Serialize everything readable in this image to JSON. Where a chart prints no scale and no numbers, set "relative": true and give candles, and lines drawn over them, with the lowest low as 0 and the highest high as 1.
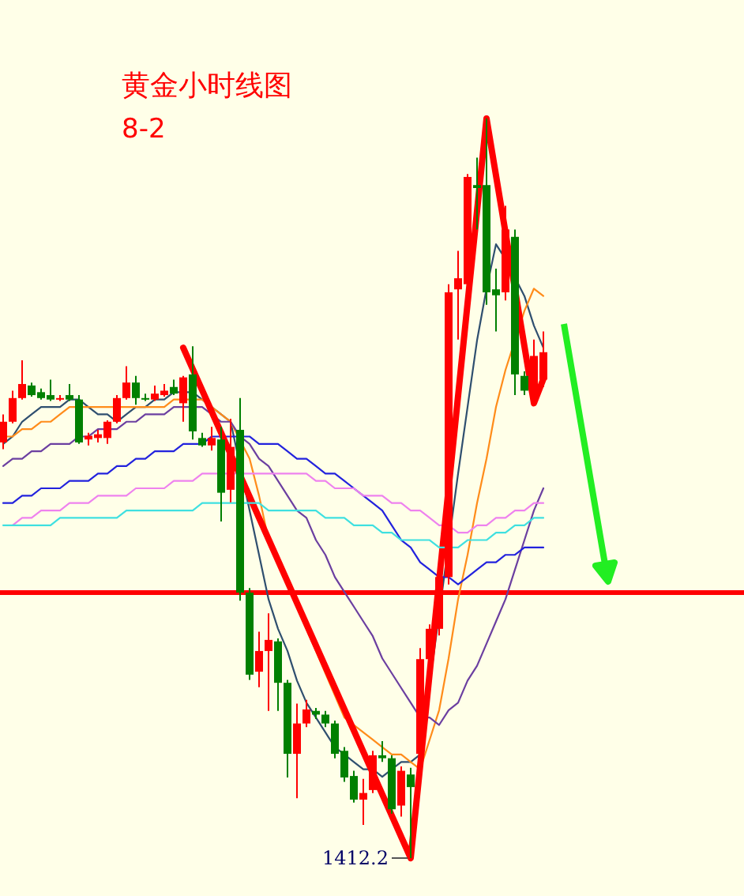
{
  "chart_data": {
    "type": "candlestick",
    "title": "黄金小时线图",
    "subtitle": "8-2",
    "relative": true,
    "tick_labels": false,
    "categories": [
      null,
      null,
      null,
      null,
      null,
      null,
      null,
      null,
      null,
      null,
      null,
      null,
      null,
      null,
      null,
      null,
      null,
      null,
      null,
      null,
      null,
      null,
      null,
      null,
      null,
      null,
      null,
      null,
      null,
      null,
      null,
      null,
      null,
      null,
      null,
      null,
      null,
      null,
      null,
      null,
      null,
      null,
      null,
      null,
      null,
      null,
      null,
      null,
      null,
      null,
      null,
      null,
      null,
      null,
      null,
      null,
      null,
      null
    ],
    "ohlc": [
      [
        0.562,
        0.6,
        0.553,
        0.59
      ],
      [
        0.59,
        0.632,
        0.588,
        0.622
      ],
      [
        0.622,
        0.673,
        0.62,
        0.641
      ],
      [
        0.639,
        0.643,
        0.624,
        0.626
      ],
      [
        0.63,
        0.635,
        0.62,
        0.622
      ],
      [
        0.626,
        0.647,
        0.618,
        0.62
      ],
      [
        0.62,
        0.626,
        0.618,
        0.622
      ],
      [
        0.626,
        0.641,
        0.618,
        0.62
      ],
      [
        0.62,
        0.626,
        0.56,
        0.562
      ],
      [
        0.566,
        0.575,
        0.558,
        0.571
      ],
      [
        0.568,
        0.579,
        0.562,
        0.573
      ],
      [
        0.568,
        0.592,
        0.56,
        0.59
      ],
      [
        0.59,
        0.626,
        0.588,
        0.622
      ],
      [
        0.622,
        0.665,
        0.62,
        0.643
      ],
      [
        0.643,
        0.652,
        0.613,
        0.622
      ],
      [
        0.622,
        0.628,
        0.618,
        0.62
      ],
      [
        0.62,
        0.639,
        0.618,
        0.628
      ],
      [
        0.626,
        0.641,
        0.624,
        0.632
      ],
      [
        0.637,
        0.647,
        0.626,
        0.628
      ],
      [
        0.615,
        0.652,
        0.59,
        0.65
      ],
      [
        0.654,
        0.692,
        0.566,
        0.577
      ],
      [
        0.568,
        0.575,
        0.556,
        0.558
      ],
      [
        0.558,
        0.583,
        0.551,
        0.568
      ],
      [
        0.566,
        0.583,
        0.455,
        0.494
      ],
      [
        0.498,
        0.594,
        0.481,
        0.556
      ],
      [
        0.579,
        0.622,
        0.348,
        0.359
      ],
      [
        0.359,
        0.365,
        0.241,
        0.248
      ],
      [
        0.252,
        0.306,
        0.231,
        0.28
      ],
      [
        0.28,
        0.331,
        0.199,
        0.295
      ],
      [
        0.293,
        0.297,
        0.199,
        0.237
      ],
      [
        0.237,
        0.241,
        0.109,
        0.141
      ],
      [
        0.141,
        0.209,
        0.081,
        0.182
      ],
      [
        0.182,
        0.214,
        0.177,
        0.201
      ],
      [
        0.199,
        0.203,
        0.188,
        0.194
      ],
      [
        0.194,
        0.199,
        0.177,
        0.182
      ],
      [
        0.182,
        0.186,
        0.135,
        0.141
      ],
      [
        0.145,
        0.15,
        0.103,
        0.109
      ],
      [
        0.111,
        0.118,
        0.075,
        0.079
      ],
      [
        0.079,
        0.107,
        0.045,
        0.088
      ],
      [
        0.092,
        0.145,
        0.088,
        0.139
      ],
      [
        0.139,
        0.158,
        0.13,
        0.135
      ],
      [
        0.135,
        0.139,
        0.06,
        0.066
      ],
      [
        0.071,
        0.124,
        0.056,
        0.118
      ],
      [
        0.113,
        0.122,
        0,
        0.096
      ],
      [
        0.141,
        0.284,
        0.135,
        0.269
      ],
      [
        0.269,
        0.316,
        0.263,
        0.31
      ],
      [
        0.31,
        0.391,
        0.301,
        0.38
      ],
      [
        0.38,
        0.776,
        0.37,
        0.765
      ],
      [
        0.769,
        0.821,
        0.701,
        0.784
      ],
      [
        0.776,
        0.925,
        0.765,
        0.921
      ],
      [
        0.91,
        0.947,
        0.85,
        0.906
      ],
      [
        0.91,
        1,
        0.748,
        0.765
      ],
      [
        0.769,
        0.797,
        0.712,
        0.761
      ],
      [
        0.765,
        0.882,
        0.754,
        0.85
      ],
      [
        0.84,
        0.85,
        0.626,
        0.654
      ],
      [
        0.652,
        0.658,
        0.626,
        0.632
      ],
      [
        0.622,
        0.701,
        0.62,
        0.679
      ],
      [
        0.647,
        0.712,
        0.637,
        0.684
      ]
    ],
    "series": [
      {
        "type": "line",
        "color": "#2f4f6f",
        "values": [
          0.56,
          0.57,
          0.59,
          0.6,
          0.61,
          0.61,
          0.61,
          0.62,
          0.62,
          0.61,
          0.6,
          0.6,
          0.59,
          0.6,
          0.61,
          0.61,
          0.62,
          0.62,
          0.63,
          0.63,
          0.63,
          0.62,
          0.61,
          0.6,
          0.59,
          null,
          0.47,
          0.41,
          0.35,
          0.31,
          0.28,
          0.24,
          0.21,
          0.19,
          0.17,
          0.15,
          0.14,
          0.13,
          0.12,
          0.12,
          0.11,
          0.12,
          0.13,
          0.13,
          0.14,
          null,
          null,
          null,
          0.52,
          0.61,
          0.7,
          0.77,
          0.83,
          0.81,
          null,
          0.76,
          0.72,
          0.69
        ]
      },
      {
        "type": "line",
        "color": "#ff8c1a",
        "values": [
          0.57,
          0.57,
          0.58,
          0.58,
          0.59,
          0.59,
          0.6,
          0.61,
          0.61,
          0.61,
          0.61,
          0.61,
          0.61,
          0.61,
          0.61,
          0.61,
          0.61,
          0.61,
          0.62,
          0.62,
          0.62,
          0.62,
          0.61,
          0.6,
          0.59,
          null,
          0.54,
          0.49,
          0.43,
          0.4,
          0.37,
          0.34,
          0.31,
          0.28,
          0.25,
          0.22,
          0.19,
          0.18,
          0.17,
          0.16,
          0.15,
          0.14,
          0.14,
          0.13,
          0.12,
          0.16,
          0.2,
          0.27,
          0.35,
          0.41,
          0.48,
          0.54,
          0.61,
          0.66,
          null,
          0.74,
          0.77,
          0.76
        ]
      },
      {
        "type": "line",
        "color": "#6b3fa0",
        "values": [
          0.53,
          0.54,
          0.54,
          0.55,
          0.55,
          0.56,
          0.56,
          0.56,
          0.57,
          0.57,
          0.58,
          0.58,
          0.58,
          0.59,
          0.59,
          0.6,
          0.6,
          0.6,
          0.61,
          0.61,
          0.61,
          0.61,
          0.6,
          0.59,
          0.59,
          0.57,
          0.56,
          0.54,
          0.53,
          0.51,
          0.49,
          0.47,
          0.46,
          0.43,
          0.41,
          0.38,
          0.36,
          0.34,
          0.32,
          0.3,
          0.27,
          0.25,
          0.23,
          0.21,
          0.19,
          0.19,
          0.18,
          0.2,
          0.21,
          0.24,
          0.26,
          0.29,
          0.32,
          0.35,
          0.39,
          0.43,
          0.47,
          0.5
        ]
      },
      {
        "type": "line",
        "color": "#2222dd",
        "values": [
          0.48,
          0.48,
          0.49,
          0.49,
          0.5,
          0.5,
          0.5,
          0.51,
          0.51,
          0.51,
          0.52,
          0.52,
          0.53,
          0.53,
          0.54,
          0.54,
          0.55,
          0.55,
          0.55,
          0.56,
          0.56,
          0.56,
          0.57,
          0.57,
          0.57,
          0.57,
          0.57,
          0.56,
          0.56,
          0.56,
          0.55,
          0.54,
          0.54,
          0.53,
          0.52,
          0.52,
          0.51,
          0.5,
          0.49,
          0.48,
          0.47,
          0.45,
          0.43,
          0.42,
          0.4,
          0.39,
          0.38,
          0.38,
          0.37,
          0.38,
          0.39,
          0.4,
          0.4,
          0.41,
          0.41,
          0.42,
          0.42,
          0.42
        ]
      },
      {
        "type": "line",
        "color": "#ee82ee",
        "values": [
          null,
          0.45,
          0.46,
          0.46,
          0.47,
          0.47,
          0.47,
          0.48,
          0.48,
          0.48,
          0.49,
          0.49,
          0.49,
          0.49,
          0.5,
          0.5,
          0.5,
          0.5,
          0.51,
          0.51,
          0.51,
          0.52,
          0.52,
          0.52,
          0.52,
          0.52,
          0.52,
          0.52,
          0.52,
          0.52,
          0.52,
          0.52,
          0.52,
          0.51,
          0.51,
          0.5,
          0.5,
          0.5,
          0.49,
          0.49,
          0.49,
          0.48,
          0.48,
          0.47,
          0.47,
          0.46,
          0.45,
          0.45,
          0.44,
          0.44,
          0.45,
          0.45,
          0.46,
          0.46,
          0.47,
          0.47,
          0.48,
          0.48
        ]
      },
      {
        "type": "line",
        "color": "#ff0000",
        "values": [
          null,
          null,
          null,
          null,
          null,
          null,
          null,
          null,
          null,
          null,
          null,
          null,
          null,
          null,
          null,
          null,
          null,
          null,
          null,
          0.69,
          null,
          null,
          null,
          null,
          null,
          null,
          null,
          null,
          null,
          null,
          null,
          null,
          null,
          null,
          null,
          null,
          null,
          null,
          null,
          null,
          null,
          null,
          null,
          0,
          null,
          null,
          null,
          null,
          null,
          null,
          null,
          1,
          null,
          null,
          null,
          null,
          0.615,
          0.648
        ]
      },
      {
        "type": "line",
        "color": "#3fe0e0",
        "values": [
          0.45,
          0.45,
          0.45,
          0.45,
          0.45,
          0.45,
          0.46,
          0.46,
          0.46,
          0.46,
          0.46,
          0.46,
          0.46,
          0.47,
          0.47,
          0.47,
          0.47,
          0.47,
          0.47,
          0.47,
          0.47,
          0.48,
          0.48,
          0.48,
          0.48,
          0.48,
          0.48,
          0.48,
          0.47,
          0.47,
          0.47,
          0.47,
          0.47,
          0.47,
          0.46,
          0.46,
          0.46,
          0.45,
          0.45,
          0.45,
          0.44,
          0.44,
          0.43,
          0.43,
          0.43,
          0.43,
          0.42,
          0.42,
          0.42,
          0.43,
          0.43,
          0.43,
          0.44,
          0.44,
          0.45,
          0.45,
          0.46,
          0.46
        ]
      }
    ],
    "ref_lines": [
      {
        "axis": "y",
        "value": 0.359,
        "color": "#ff0000"
      }
    ],
    "annotations": [
      "1412.2"
    ]
  }
}
